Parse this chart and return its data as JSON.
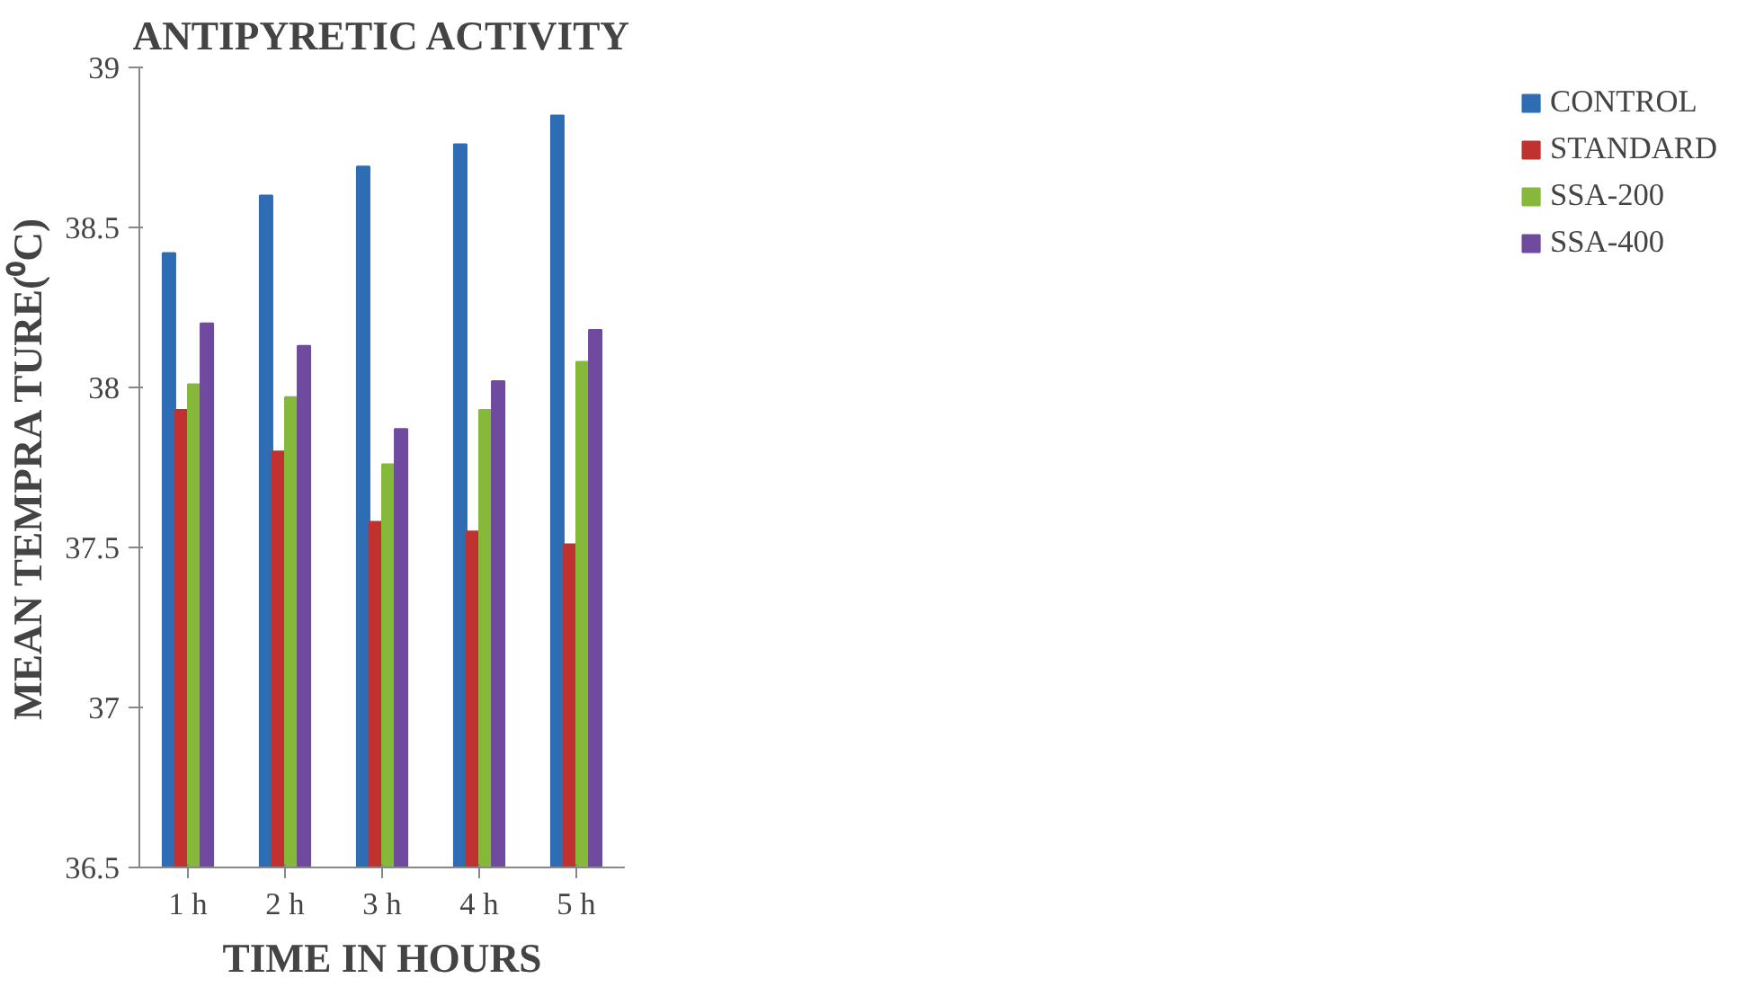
{
  "chart_data": {
    "type": "bar",
    "title": "ANTIPYRETIC ACTIVITY",
    "xlabel": "TIME IN HOURS",
    "ylabel": "MEAN TEMPRA TURE(⁰C)",
    "categories": [
      "1 h",
      "2 h",
      "3 h",
      "4 h",
      "5 h"
    ],
    "series": [
      {
        "name": "CONTROL",
        "color": "#2e6db4",
        "values": [
          38.42,
          38.6,
          38.69,
          38.76,
          38.85
        ]
      },
      {
        "name": "STANDARD",
        "color": "#c0322f",
        "values": [
          37.93,
          37.8,
          37.58,
          37.55,
          37.51
        ]
      },
      {
        "name": "SSA-200",
        "color": "#86b83a",
        "values": [
          38.01,
          37.97,
          37.76,
          37.93,
          38.08
        ]
      },
      {
        "name": "SSA-400",
        "color": "#6f4a9e",
        "values": [
          38.2,
          38.13,
          37.87,
          38.02,
          38.18
        ]
      }
    ],
    "ylim": [
      36.5,
      39
    ],
    "yticks": [
      36.5,
      37,
      37.5,
      38,
      38.5,
      39
    ],
    "grid": false,
    "legend": "right"
  }
}
